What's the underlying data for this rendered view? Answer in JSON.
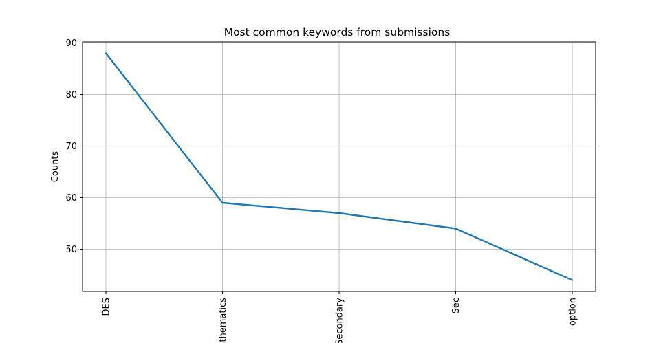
{
  "chart_data": {
    "type": "line",
    "title": "Most common keywords from submissions",
    "xlabel": "",
    "ylabel": "Counts",
    "categories": [
      "DES",
      "Mathematics",
      "Secondary",
      "Sec",
      "option"
    ],
    "series": [
      {
        "values": [
          88,
          59,
          57,
          54,
          44
        ],
        "color": "#1f77b4"
      }
    ],
    "ylim": [
      41.8,
      90.2
    ],
    "yticks": [
      50,
      60,
      70,
      80,
      90
    ],
    "grid": true,
    "legend": "none",
    "x_tick_rotation": "vertical"
  }
}
